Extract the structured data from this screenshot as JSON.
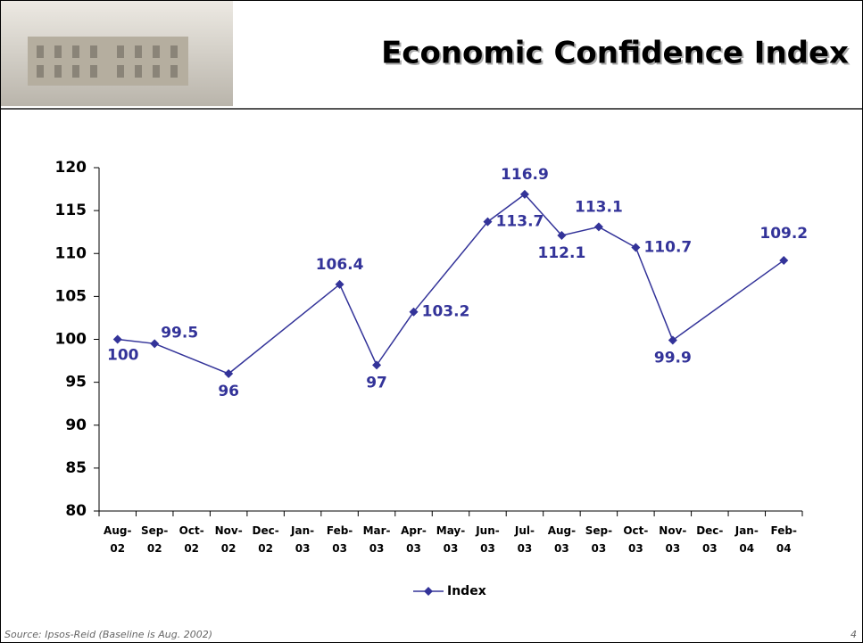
{
  "chart_data": {
    "type": "line",
    "title": "Economic Confidence Index",
    "categories": [
      "Aug-02",
      "Sep-02",
      "Oct-02",
      "Nov-02",
      "Dec-02",
      "Jan-03",
      "Feb-03",
      "Mar-03",
      "Apr-03",
      "May-03",
      "Jun-03",
      "Jul-03",
      "Aug-03",
      "Sep-03",
      "Oct-03",
      "Nov-03",
      "Dec-03",
      "Jan-04",
      "Feb-04"
    ],
    "series": [
      {
        "name": "Index",
        "color": "#333399",
        "values": [
          100,
          99.5,
          null,
          96,
          null,
          null,
          106.4,
          97,
          103.2,
          null,
          113.7,
          116.9,
          112.1,
          113.1,
          110.7,
          99.9,
          null,
          null,
          109.2
        ]
      }
    ],
    "ylim": [
      80,
      120
    ],
    "yticks": [
      80,
      85,
      90,
      95,
      100,
      105,
      110,
      115,
      120
    ],
    "grid": false,
    "legend": "bottom"
  },
  "footer": {
    "source": "Source: Ipsos-Reid (Baseline is Aug. 2002)",
    "page": "4"
  }
}
